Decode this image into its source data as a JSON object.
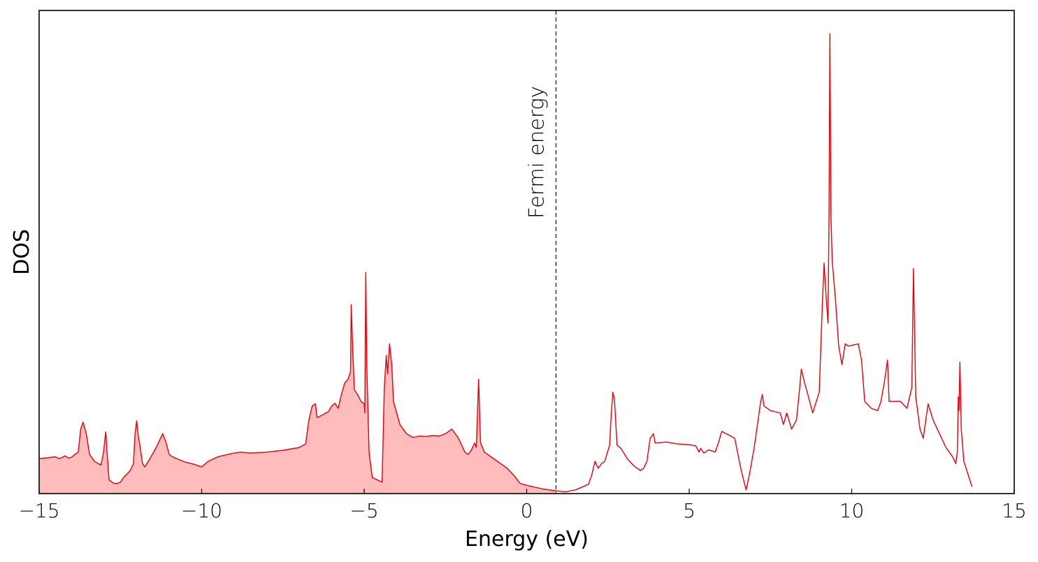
{
  "chart_data": {
    "type": "area",
    "title": "",
    "xlabel": "Energy (eV)",
    "ylabel": "DOS",
    "xlim": [
      -15,
      15
    ],
    "ylim": [
      0,
      1
    ],
    "x_ticks": [
      -15,
      -10,
      -5,
      0,
      5,
      10,
      15
    ],
    "x_tick_labels": [
      "−15",
      "−10",
      "−5",
      "0",
      "5",
      "10",
      "15"
    ],
    "y_ticks_shown": false,
    "grid": false,
    "legend": "none",
    "fermi_energy": 0.9,
    "annotations": [
      {
        "text": "Fermi energy",
        "x": 0.9,
        "orientation": "vertical"
      }
    ],
    "colors": {
      "line": "#e8000b",
      "fill": "#ffbcbc",
      "fermi_line": "#000000"
    },
    "fill_below_fermi": true,
    "series": [
      {
        "values": [
          [
            -15.0,
            0.076
          ],
          [
            -14.7,
            0.078
          ],
          [
            -14.5,
            0.08
          ],
          [
            -14.4,
            0.076
          ],
          [
            -14.3,
            0.078
          ],
          [
            -14.2,
            0.082
          ],
          [
            -14.1,
            0.077
          ],
          [
            -14.0,
            0.079
          ],
          [
            -13.9,
            0.085
          ],
          [
            -13.8,
            0.09
          ],
          [
            -13.72,
            0.14
          ],
          [
            -13.65,
            0.155
          ],
          [
            -13.55,
            0.13
          ],
          [
            -13.45,
            0.085
          ],
          [
            -13.3,
            0.07
          ],
          [
            -13.1,
            0.062
          ],
          [
            -13.02,
            0.09
          ],
          [
            -12.95,
            0.134
          ],
          [
            -12.9,
            0.08
          ],
          [
            -12.85,
            0.03
          ],
          [
            -12.7,
            0.022
          ],
          [
            -12.6,
            0.022
          ],
          [
            -12.5,
            0.025
          ],
          [
            -12.4,
            0.035
          ],
          [
            -12.2,
            0.05
          ],
          [
            -12.1,
            0.065
          ],
          [
            -12.05,
            0.13
          ],
          [
            -12.0,
            0.158
          ],
          [
            -11.95,
            0.125
          ],
          [
            -11.9,
            0.105
          ],
          [
            -11.82,
            0.065
          ],
          [
            -11.75,
            0.058
          ],
          [
            -11.6,
            0.075
          ],
          [
            -11.4,
            0.1
          ],
          [
            -11.2,
            0.13
          ],
          [
            -11.1,
            0.112
          ],
          [
            -11.0,
            0.085
          ],
          [
            -10.9,
            0.08
          ],
          [
            -10.5,
            0.068
          ],
          [
            -10.3,
            0.065
          ],
          [
            -10.0,
            0.058
          ],
          [
            -9.8,
            0.07
          ],
          [
            -9.5,
            0.08
          ],
          [
            -9.2,
            0.085
          ],
          [
            -9.0,
            0.088
          ],
          [
            -8.8,
            0.09
          ],
          [
            -8.5,
            0.088
          ],
          [
            -8.0,
            0.09
          ],
          [
            -7.5,
            0.094
          ],
          [
            -7.0,
            0.1
          ],
          [
            -6.8,
            0.108
          ],
          [
            -6.7,
            0.16
          ],
          [
            -6.6,
            0.19
          ],
          [
            -6.5,
            0.195
          ],
          [
            -6.45,
            0.165
          ],
          [
            -6.3,
            0.17
          ],
          [
            -6.1,
            0.178
          ],
          [
            -6.0,
            0.19
          ],
          [
            -5.9,
            0.196
          ],
          [
            -5.8,
            0.185
          ],
          [
            -5.7,
            0.215
          ],
          [
            -5.6,
            0.24
          ],
          [
            -5.5,
            0.248
          ],
          [
            -5.42,
            0.265
          ],
          [
            -5.4,
            0.41
          ],
          [
            -5.35,
            0.31
          ],
          [
            -5.3,
            0.225
          ],
          [
            -5.2,
            0.215
          ],
          [
            -5.1,
            0.2
          ],
          [
            -5.0,
            0.195
          ],
          [
            -4.98,
            0.175
          ],
          [
            -4.95,
            0.48
          ],
          [
            -4.92,
            0.28
          ],
          [
            -4.85,
            0.09
          ],
          [
            -4.75,
            0.035
          ],
          [
            -4.6,
            0.03
          ],
          [
            -4.45,
            0.025
          ],
          [
            -4.38,
            0.23
          ],
          [
            -4.32,
            0.3
          ],
          [
            -4.28,
            0.26
          ],
          [
            -4.22,
            0.325
          ],
          [
            -4.15,
            0.28
          ],
          [
            -4.1,
            0.2
          ],
          [
            -3.9,
            0.15
          ],
          [
            -3.7,
            0.13
          ],
          [
            -3.5,
            0.122
          ],
          [
            -3.3,
            0.125
          ],
          [
            -3.1,
            0.124
          ],
          [
            -2.9,
            0.126
          ],
          [
            -2.7,
            0.125
          ],
          [
            -2.5,
            0.13
          ],
          [
            -2.3,
            0.14
          ],
          [
            -2.1,
            0.12
          ],
          [
            -1.9,
            0.09
          ],
          [
            -1.8,
            0.085
          ],
          [
            -1.7,
            0.095
          ],
          [
            -1.6,
            0.11
          ],
          [
            -1.55,
            0.1
          ],
          [
            -1.48,
            0.248
          ],
          [
            -1.42,
            0.11
          ],
          [
            -1.3,
            0.09
          ],
          [
            -1.0,
            0.075
          ],
          [
            -0.6,
            0.055
          ],
          [
            -0.4,
            0.04
          ],
          [
            -0.2,
            0.022
          ],
          [
            0.0,
            0.018
          ],
          [
            0.5,
            0.01
          ],
          [
            0.9,
            0.006
          ],
          [
            1.2,
            0.004
          ],
          [
            1.5,
            0.008
          ],
          [
            1.9,
            0.02
          ],
          [
            2.0,
            0.04
          ],
          [
            2.1,
            0.07
          ],
          [
            2.2,
            0.055
          ],
          [
            2.3,
            0.065
          ],
          [
            2.4,
            0.07
          ],
          [
            2.55,
            0.105
          ],
          [
            2.6,
            0.17
          ],
          [
            2.65,
            0.22
          ],
          [
            2.7,
            0.205
          ],
          [
            2.78,
            0.105
          ],
          [
            2.9,
            0.098
          ],
          [
            3.1,
            0.075
          ],
          [
            3.3,
            0.06
          ],
          [
            3.5,
            0.05
          ],
          [
            3.6,
            0.055
          ],
          [
            3.7,
            0.07
          ],
          [
            3.8,
            0.12
          ],
          [
            3.9,
            0.13
          ],
          [
            3.95,
            0.11
          ],
          [
            4.0,
            0.11
          ],
          [
            4.3,
            0.112
          ],
          [
            4.6,
            0.108
          ],
          [
            5.0,
            0.106
          ],
          [
            5.2,
            0.104
          ],
          [
            5.3,
            0.09
          ],
          [
            5.35,
            0.098
          ],
          [
            5.45,
            0.088
          ],
          [
            5.6,
            0.095
          ],
          [
            5.8,
            0.09
          ],
          [
            5.9,
            0.11
          ],
          [
            6.0,
            0.135
          ],
          [
            6.4,
            0.12
          ],
          [
            6.6,
            0.05
          ],
          [
            6.75,
            0.008
          ],
          [
            6.85,
            0.04
          ],
          [
            7.0,
            0.1
          ],
          [
            7.2,
            0.2
          ],
          [
            7.25,
            0.215
          ],
          [
            7.3,
            0.19
          ],
          [
            7.5,
            0.18
          ],
          [
            7.8,
            0.175
          ],
          [
            7.9,
            0.15
          ],
          [
            8.0,
            0.175
          ],
          [
            8.15,
            0.14
          ],
          [
            8.3,
            0.16
          ],
          [
            8.4,
            0.23
          ],
          [
            8.45,
            0.27
          ],
          [
            8.55,
            0.24
          ],
          [
            8.65,
            0.215
          ],
          [
            8.8,
            0.175
          ],
          [
            9.0,
            0.22
          ],
          [
            9.1,
            0.42
          ],
          [
            9.15,
            0.5
          ],
          [
            9.2,
            0.44
          ],
          [
            9.27,
            0.37
          ],
          [
            9.3,
            0.6
          ],
          [
            9.33,
            0.998
          ],
          [
            9.36,
            0.61
          ],
          [
            9.4,
            0.505
          ],
          [
            9.5,
            0.42
          ],
          [
            9.6,
            0.32
          ],
          [
            9.7,
            0.28
          ],
          [
            9.8,
            0.325
          ],
          [
            9.9,
            0.32
          ],
          [
            10.2,
            0.325
          ],
          [
            10.3,
            0.29
          ],
          [
            10.4,
            0.2
          ],
          [
            10.6,
            0.185
          ],
          [
            10.8,
            0.18
          ],
          [
            10.9,
            0.2
          ],
          [
            11.0,
            0.24
          ],
          [
            11.1,
            0.29
          ],
          [
            11.15,
            0.2
          ],
          [
            11.2,
            0.2
          ],
          [
            11.5,
            0.2
          ],
          [
            11.7,
            0.185
          ],
          [
            11.85,
            0.23
          ],
          [
            11.9,
            0.488
          ],
          [
            11.97,
            0.21
          ],
          [
            12.1,
            0.14
          ],
          [
            12.2,
            0.12
          ],
          [
            12.35,
            0.195
          ],
          [
            12.5,
            0.16
          ],
          [
            12.7,
            0.13
          ],
          [
            12.9,
            0.1
          ],
          [
            13.1,
            0.08
          ],
          [
            13.2,
            0.065
          ],
          [
            13.25,
            0.09
          ],
          [
            13.28,
            0.21
          ],
          [
            13.3,
            0.18
          ],
          [
            13.33,
            0.285
          ],
          [
            13.37,
            0.14
          ],
          [
            13.45,
            0.07
          ],
          [
            13.7,
            0.015
          ]
        ]
      }
    ]
  }
}
